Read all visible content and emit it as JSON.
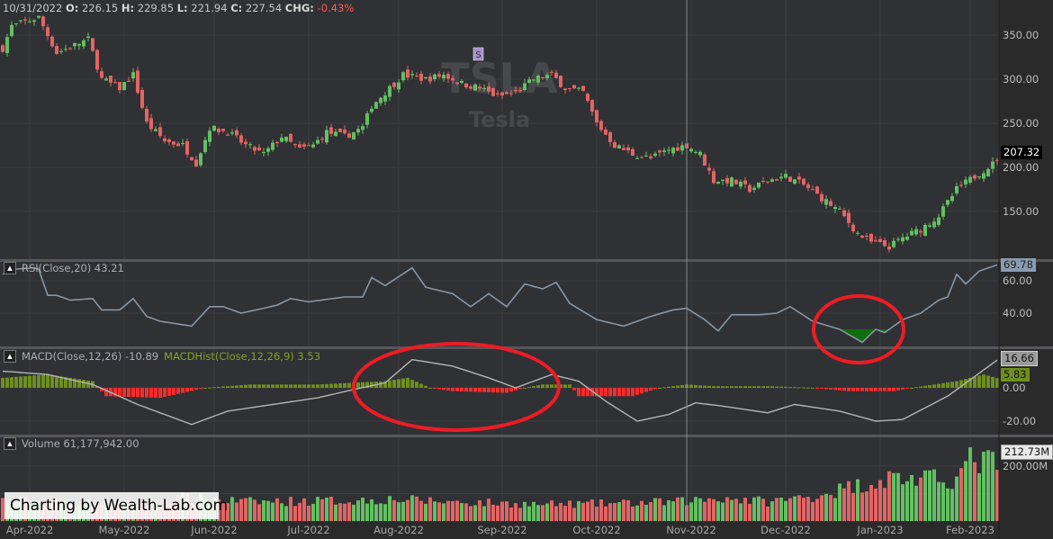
{
  "header": {
    "date": "10/31/2022",
    "o_label": "O:",
    "o": "226.15",
    "h_label": "H:",
    "h": "229.85",
    "l_label": "L:",
    "l": "221.94",
    "c_label": "C:",
    "c": "227.54",
    "chg_label": "CHG:",
    "chg": "-0.43%"
  },
  "watermark": {
    "symbol": "TSLA",
    "name": "Tesla",
    "marker": "S"
  },
  "panes": {
    "rsi": {
      "label": "RSI(Close,20) 43.21",
      "last": "69.78"
    },
    "macd": {
      "label": "MACD(Close,12,26) -10.89",
      "hist_label": "MACDHist(Close,12,26,9) 3.53",
      "last": "16.66",
      "hist_last": "5.83"
    },
    "volume": {
      "label": "Volume 61,177,942.00",
      "last": "212.73M"
    },
    "price": {
      "last": "207.32"
    }
  },
  "credit": "Charting by Wealth-Lab.com",
  "colors": {
    "up": "#62c062",
    "down": "#e36464",
    "rsi": "#8796a6",
    "macd": "#b4b4b4",
    "hist_pos": "#6e8f1e",
    "hist_neg": "#ff2a2a",
    "oversold_fill": "#0e6e0e",
    "annotation": "#ee1c24"
  },
  "chart_data": {
    "type": "candlestick",
    "symbol": "TSLA",
    "bars": 222,
    "x_ticks": [
      {
        "bar": 6,
        "label": "Apr-2022"
      },
      {
        "bar": 27,
        "label": "May-2022"
      },
      {
        "bar": 47,
        "label": "Jun-2022"
      },
      {
        "bar": 68,
        "label": "Jul-2022"
      },
      {
        "bar": 88,
        "label": "Aug-2022"
      },
      {
        "bar": 111,
        "label": "Sep-2022"
      },
      {
        "bar": 132,
        "label": "Oct-2022"
      },
      {
        "bar": 153,
        "label": "Nov-2022"
      },
      {
        "bar": 174,
        "label": "Dec-2022"
      },
      {
        "bar": 195,
        "label": "Jan-2023"
      },
      {
        "bar": 215,
        "label": "Feb-2023"
      }
    ],
    "cursor_bar": 152,
    "price": {
      "ylim": [
        105,
        390
      ],
      "ticks": [
        "150.00",
        "200.00",
        "250.00",
        "300.00",
        "350.00"
      ],
      "close_path": [
        [
          0,
          335
        ],
        [
          2,
          360
        ],
        [
          8,
          370
        ],
        [
          12,
          330
        ],
        [
          19,
          345
        ],
        [
          22,
          300
        ],
        [
          26,
          290
        ],
        [
          29,
          305
        ],
        [
          32,
          250
        ],
        [
          36,
          230
        ],
        [
          40,
          225
        ],
        [
          43,
          205
        ],
        [
          46,
          245
        ],
        [
          50,
          240
        ],
        [
          54,
          225
        ],
        [
          58,
          215
        ],
        [
          62,
          235
        ],
        [
          66,
          220
        ],
        [
          69,
          225
        ],
        [
          72,
          240
        ],
        [
          76,
          235
        ],
        [
          80,
          245
        ],
        [
          82,
          270
        ],
        [
          86,
          290
        ],
        [
          89,
          305
        ],
        [
          94,
          300
        ],
        [
          98,
          305
        ],
        [
          102,
          295
        ],
        [
          106,
          290
        ],
        [
          110,
          280
        ],
        [
          114,
          285
        ],
        [
          118,
          300
        ],
        [
          122,
          305
        ],
        [
          125,
          290
        ],
        [
          129,
          285
        ],
        [
          132,
          250
        ],
        [
          136,
          225
        ],
        [
          140,
          215
        ],
        [
          144,
          210
        ],
        [
          148,
          220
        ],
        [
          152,
          225
        ],
        [
          155,
          215
        ],
        [
          158,
          185
        ],
        [
          162,
          185
        ],
        [
          166,
          175
        ],
        [
          170,
          185
        ],
        [
          174,
          190
        ],
        [
          178,
          180
        ],
        [
          182,
          165
        ],
        [
          186,
          150
        ],
        [
          190,
          125
        ],
        [
          193,
          115
        ],
        [
          197,
          110
        ],
        [
          200,
          120
        ],
        [
          204,
          130
        ],
        [
          208,
          145
        ],
        [
          212,
          175
        ],
        [
          216,
          190
        ],
        [
          221,
          207.32
        ]
      ]
    },
    "rsi": {
      "ylim": [
        18,
        72
      ],
      "ticks": [
        "40.00",
        "60.00"
      ],
      "oversold": 30,
      "path": [
        [
          0,
          64
        ],
        [
          2,
          67
        ],
        [
          7,
          68
        ],
        [
          8,
          67
        ],
        [
          10,
          51
        ],
        [
          12,
          51
        ],
        [
          15,
          48
        ],
        [
          20,
          49
        ],
        [
          22,
          42
        ],
        [
          26,
          42
        ],
        [
          29,
          49
        ],
        [
          32,
          38
        ],
        [
          35,
          35
        ],
        [
          42,
          32
        ],
        [
          46,
          44
        ],
        [
          49,
          44
        ],
        [
          53,
          40
        ],
        [
          58,
          43
        ],
        [
          61,
          45
        ],
        [
          64,
          49
        ],
        [
          68,
          47
        ],
        [
          76,
          50
        ],
        [
          80,
          50
        ],
        [
          82,
          62
        ],
        [
          85,
          57
        ],
        [
          91,
          68
        ],
        [
          94,
          56
        ],
        [
          100,
          52
        ],
        [
          104,
          44
        ],
        [
          108,
          52
        ],
        [
          112,
          44
        ],
        [
          116,
          58
        ],
        [
          120,
          55
        ],
        [
          123,
          59
        ],
        [
          126,
          46
        ],
        [
          132,
          36
        ],
        [
          138,
          32
        ],
        [
          144,
          38
        ],
        [
          149,
          42
        ],
        [
          152,
          43
        ],
        [
          156,
          36
        ],
        [
          159,
          29
        ],
        [
          162,
          39
        ],
        [
          168,
          39
        ],
        [
          172,
          40
        ],
        [
          175,
          44
        ],
        [
          180,
          35
        ],
        [
          186,
          30
        ],
        [
          191,
          22
        ],
        [
          194,
          30
        ],
        [
          196,
          28
        ],
        [
          200,
          36
        ],
        [
          204,
          40
        ],
        [
          208,
          48
        ],
        [
          210,
          50
        ],
        [
          212,
          64
        ],
        [
          214,
          58
        ],
        [
          217,
          66
        ],
        [
          221,
          69.78
        ]
      ]
    },
    "macd": {
      "ylim": [
        -27,
        27
      ],
      "ticks": [
        "-20.00",
        "0.00"
      ],
      "line": [
        [
          0,
          10
        ],
        [
          10,
          8
        ],
        [
          20,
          2
        ],
        [
          30,
          -10
        ],
        [
          42,
          -22
        ],
        [
          50,
          -14
        ],
        [
          60,
          -10
        ],
        [
          70,
          -6
        ],
        [
          78,
          -1
        ],
        [
          85,
          3
        ],
        [
          91,
          17
        ],
        [
          100,
          13
        ],
        [
          108,
          6
        ],
        [
          114,
          0
        ],
        [
          122,
          8
        ],
        [
          128,
          4
        ],
        [
          134,
          -8
        ],
        [
          141,
          -20
        ],
        [
          148,
          -16
        ],
        [
          154,
          -9
        ],
        [
          160,
          -11
        ],
        [
          170,
          -15
        ],
        [
          176,
          -10
        ],
        [
          186,
          -14
        ],
        [
          194,
          -20
        ],
        [
          200,
          -19
        ],
        [
          210,
          -5
        ],
        [
          221,
          16.66
        ]
      ],
      "hist": [
        [
          0,
          6
        ],
        [
          10,
          8
        ],
        [
          20,
          4
        ],
        [
          23,
          -5
        ],
        [
          35,
          -6
        ],
        [
          45,
          0
        ],
        [
          55,
          2
        ],
        [
          70,
          2
        ],
        [
          85,
          4
        ],
        [
          90,
          6
        ],
        [
          95,
          0
        ],
        [
          100,
          -2
        ],
        [
          112,
          -3
        ],
        [
          116,
          0
        ],
        [
          120,
          2
        ],
        [
          126,
          2
        ],
        [
          128,
          -5
        ],
        [
          140,
          -5
        ],
        [
          146,
          0
        ],
        [
          152,
          2
        ],
        [
          158,
          1
        ],
        [
          170,
          1
        ],
        [
          180,
          0
        ],
        [
          188,
          -2
        ],
        [
          198,
          -2
        ],
        [
          202,
          0
        ],
        [
          212,
          4
        ],
        [
          218,
          8
        ],
        [
          221,
          5.83
        ]
      ]
    },
    "volume": {
      "unit": "M",
      "ticks": [
        "200.00M"
      ],
      "path": [
        [
          0,
          75
        ],
        [
          20,
          65
        ],
        [
          30,
          60
        ],
        [
          40,
          85
        ],
        [
          55,
          70
        ],
        [
          80,
          75
        ],
        [
          85,
          80
        ],
        [
          100,
          70
        ],
        [
          120,
          60
        ],
        [
          140,
          65
        ],
        [
          150,
          70
        ],
        [
          160,
          85
        ],
        [
          170,
          70
        ],
        [
          180,
          90
        ],
        [
          190,
          130
        ],
        [
          198,
          160
        ],
        [
          205,
          150
        ],
        [
          212,
          155
        ],
        [
          215,
          220
        ],
        [
          221,
          212.73
        ]
      ]
    }
  }
}
